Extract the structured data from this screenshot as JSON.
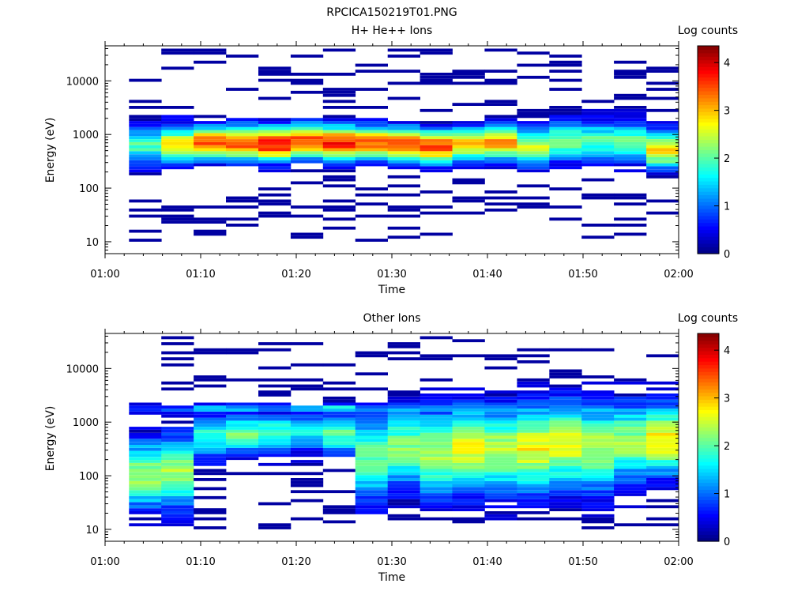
{
  "figure_title": "RPCICA150219T01.PNG",
  "colormap": [
    "#00007f",
    "#0000ff",
    "#007fff",
    "#00ffff",
    "#7fff7f",
    "#ffff00",
    "#ff7f00",
    "#ff0000",
    "#7f0000"
  ],
  "chart_data": [
    {
      "type": "heatmap",
      "title": "H+ He++ Ions",
      "xlabel": "Time",
      "ylabel": "Energy (eV)",
      "colorbar_label": "Log counts",
      "colorbar_range": [
        0,
        4.35
      ],
      "colorbar_ticks": [
        "0",
        "1",
        "2",
        "3",
        "4"
      ],
      "y_scale": "log",
      "ylim": [
        6,
        45000
      ],
      "y_ticks": [
        "10",
        "100",
        "1000",
        "10000"
      ],
      "x_range": [
        "01:00",
        "02:00"
      ],
      "x_ticks": [
        "01:00",
        "01:10",
        "01:20",
        "01:30",
        "01:40",
        "01:50",
        "02:00"
      ],
      "time_bins": [
        "01:03",
        "01:07",
        "01:10",
        "01:13",
        "01:17",
        "01:20",
        "01:23",
        "01:27",
        "01:30",
        "01:33",
        "01:37",
        "01:40",
        "01:43",
        "01:47",
        "01:50",
        "01:53",
        "01:57"
      ],
      "profiles": [
        {
          "center": 600,
          "width": 0.25,
          "peak": 1.9,
          "noise": 0.5
        },
        {
          "center": 620,
          "width": 0.25,
          "peak": 2.6,
          "noise": 0.55
        },
        {
          "center": 650,
          "width": 0.22,
          "peak": 3.4,
          "noise": 0.5
        },
        {
          "center": 650,
          "width": 0.22,
          "peak": 3.5,
          "noise": 0.5
        },
        {
          "center": 620,
          "width": 0.22,
          "peak": 3.8,
          "noise": 0.55
        },
        {
          "center": 700,
          "width": 0.22,
          "peak": 3.6,
          "noise": 0.5
        },
        {
          "center": 650,
          "width": 0.22,
          "peak": 3.7,
          "noise": 0.5
        },
        {
          "center": 650,
          "width": 0.22,
          "peak": 3.3,
          "noise": 0.55
        },
        {
          "center": 620,
          "width": 0.22,
          "peak": 3.6,
          "noise": 0.5
        },
        {
          "center": 560,
          "width": 0.22,
          "peak": 3.5,
          "noise": 0.55
        },
        {
          "center": 620,
          "width": 0.22,
          "peak": 3.0,
          "noise": 0.5
        },
        {
          "center": 650,
          "width": 0.22,
          "peak": 3.2,
          "noise": 0.5
        },
        {
          "center": 560,
          "width": 0.24,
          "peak": 2.5,
          "noise": 0.5
        },
        {
          "center": 700,
          "width": 0.26,
          "peak": 2.2,
          "noise": 0.5
        },
        {
          "center": 700,
          "width": 0.26,
          "peak": 2.0,
          "noise": 0.5
        },
        {
          "center": 650,
          "width": 0.26,
          "peak": 2.1,
          "noise": 0.5
        },
        {
          "center": 480,
          "width": 0.25,
          "peak": 2.8,
          "noise": 0.55
        }
      ]
    },
    {
      "type": "heatmap",
      "title": "Other Ions",
      "xlabel": "Time",
      "ylabel": "Energy (eV)",
      "colorbar_label": "Log counts",
      "colorbar_range": [
        0,
        4.35
      ],
      "colorbar_ticks": [
        "0",
        "1",
        "2",
        "3",
        "4"
      ],
      "y_scale": "log",
      "ylim": [
        6,
        45000
      ],
      "y_ticks": [
        "10",
        "100",
        "1000",
        "10000"
      ],
      "x_range": [
        "01:00",
        "02:00"
      ],
      "x_ticks": [
        "01:00",
        "01:10",
        "01:20",
        "01:30",
        "01:40",
        "01:50",
        "02:00"
      ],
      "time_bins": [
        "01:03",
        "01:07",
        "01:10",
        "01:13",
        "01:17",
        "01:20",
        "01:23",
        "01:27",
        "01:30",
        "01:33",
        "01:37",
        "01:40",
        "01:43",
        "01:47",
        "01:50",
        "01:53",
        "01:57"
      ],
      "profiles": [
        {
          "center": 100,
          "width": 0.45,
          "peak": 2.3,
          "noise": 0.5,
          "band2": 1600,
          "band2_peak": 0.8
        },
        {
          "center": 110,
          "width": 0.45,
          "peak": 2.4,
          "noise": 0.5,
          "band2": 1600,
          "band2_peak": 1.0
        },
        {
          "center": 500,
          "width": 0.3,
          "peak": 1.8,
          "noise": 0.5,
          "band2": 1700,
          "band2_peak": 1.5
        },
        {
          "center": 550,
          "width": 0.25,
          "peak": 2.1,
          "noise": 0.5,
          "band2": 1700,
          "band2_peak": 1.4
        },
        {
          "center": 580,
          "width": 0.25,
          "peak": 1.9,
          "noise": 0.5,
          "band2": 1650,
          "band2_peak": 1.3
        },
        {
          "center": 600,
          "width": 0.25,
          "peak": 1.6,
          "noise": 0.5,
          "band2": 1650,
          "band2_peak": 1.4
        },
        {
          "center": 550,
          "width": 0.25,
          "peak": 2.0,
          "noise": 0.5,
          "band2": 1700,
          "band2_peak": 1.6
        },
        {
          "center": 200,
          "width": 0.55,
          "peak": 2.0,
          "noise": 0.5,
          "band2": 1600,
          "band2_peak": 1.3
        },
        {
          "center": 300,
          "width": 0.5,
          "peak": 2.2,
          "noise": 0.5,
          "band2": 1600,
          "band2_peak": 1.3
        },
        {
          "center": 250,
          "width": 0.55,
          "peak": 2.4,
          "noise": 0.5,
          "band2": 1600,
          "band2_peak": 1.2
        },
        {
          "center": 300,
          "width": 0.55,
          "peak": 2.6,
          "noise": 0.5,
          "band2": 1700,
          "band2_peak": 1.4
        },
        {
          "center": 280,
          "width": 0.55,
          "peak": 2.4,
          "noise": 0.5,
          "band2": 1600,
          "band2_peak": 1.3
        },
        {
          "center": 300,
          "width": 0.55,
          "peak": 2.7,
          "noise": 0.5,
          "band2": 1600,
          "band2_peak": 1.5
        },
        {
          "center": 350,
          "width": 0.55,
          "peak": 2.6,
          "noise": 0.5,
          "band2": 1600,
          "band2_peak": 1.4
        },
        {
          "center": 300,
          "width": 0.55,
          "peak": 2.4,
          "noise": 0.5,
          "band2": 1600,
          "band2_peak": 1.3
        },
        {
          "center": 400,
          "width": 0.5,
          "peak": 2.3,
          "noise": 0.5,
          "band2": 1600,
          "band2_peak": 1.3
        },
        {
          "center": 450,
          "width": 0.45,
          "peak": 2.8,
          "noise": 0.5,
          "band2": 1600,
          "band2_peak": 1.6
        }
      ]
    }
  ]
}
